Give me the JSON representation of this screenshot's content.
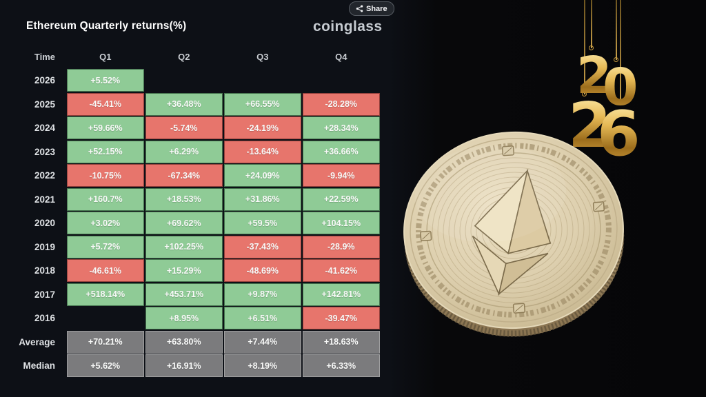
{
  "header": {
    "title": "Ethereum Quarterly returns(%)",
    "brand": "coinglass",
    "share_label": "Share"
  },
  "table": {
    "time_header": "Time",
    "quarter_headers": [
      "Q1",
      "Q2",
      "Q3",
      "Q4"
    ],
    "rows": [
      {
        "label": "2026",
        "cells": [
          {
            "text": "+5.52%",
            "type": "green"
          },
          {
            "type": "empty"
          },
          {
            "type": "empty"
          },
          {
            "type": "empty"
          }
        ]
      },
      {
        "label": "2025",
        "cells": [
          {
            "text": "-45.41%",
            "type": "red"
          },
          {
            "text": "+36.48%",
            "type": "green"
          },
          {
            "text": "+66.55%",
            "type": "green"
          },
          {
            "text": "-28.28%",
            "type": "red"
          }
        ]
      },
      {
        "label": "2024",
        "cells": [
          {
            "text": "+59.66%",
            "type": "green"
          },
          {
            "text": "-5.74%",
            "type": "red"
          },
          {
            "text": "-24.19%",
            "type": "red"
          },
          {
            "text": "+28.34%",
            "type": "green"
          }
        ]
      },
      {
        "label": "2023",
        "cells": [
          {
            "text": "+52.15%",
            "type": "green"
          },
          {
            "text": "+6.29%",
            "type": "green"
          },
          {
            "text": "-13.64%",
            "type": "red"
          },
          {
            "text": "+36.66%",
            "type": "green"
          }
        ]
      },
      {
        "label": "2022",
        "cells": [
          {
            "text": "-10.75%",
            "type": "red"
          },
          {
            "text": "-67.34%",
            "type": "red"
          },
          {
            "text": "+24.09%",
            "type": "green"
          },
          {
            "text": "-9.94%",
            "type": "red"
          }
        ]
      },
      {
        "label": "2021",
        "cells": [
          {
            "text": "+160.7%",
            "type": "green"
          },
          {
            "text": "+18.53%",
            "type": "green"
          },
          {
            "text": "+31.86%",
            "type": "green"
          },
          {
            "text": "+22.59%",
            "type": "green"
          }
        ]
      },
      {
        "label": "2020",
        "cells": [
          {
            "text": "+3.02%",
            "type": "green"
          },
          {
            "text": "+69.62%",
            "type": "green"
          },
          {
            "text": "+59.5%",
            "type": "green"
          },
          {
            "text": "+104.15%",
            "type": "green"
          }
        ]
      },
      {
        "label": "2019",
        "cells": [
          {
            "text": "+5.72%",
            "type": "green"
          },
          {
            "text": "+102.25%",
            "type": "green"
          },
          {
            "text": "-37.43%",
            "type": "red"
          },
          {
            "text": "-28.9%",
            "type": "red"
          }
        ]
      },
      {
        "label": "2018",
        "cells": [
          {
            "text": "-46.61%",
            "type": "red"
          },
          {
            "text": "+15.29%",
            "type": "green"
          },
          {
            "text": "-48.69%",
            "type": "red"
          },
          {
            "text": "-41.62%",
            "type": "red"
          }
        ]
      },
      {
        "label": "2017",
        "cells": [
          {
            "text": "+518.14%",
            "type": "green"
          },
          {
            "text": "+453.71%",
            "type": "green"
          },
          {
            "text": "+9.87%",
            "type": "green"
          },
          {
            "text": "+142.81%",
            "type": "green"
          }
        ]
      },
      {
        "label": "2016",
        "cells": [
          {
            "type": "empty"
          },
          {
            "text": "+8.95%",
            "type": "green"
          },
          {
            "text": "+6.51%",
            "type": "green"
          },
          {
            "text": "-39.47%",
            "type": "red"
          }
        ]
      },
      {
        "label": "Average",
        "cells": [
          {
            "text": "+70.21%",
            "type": "gray"
          },
          {
            "text": "+63.80%",
            "type": "gray"
          },
          {
            "text": "+7.44%",
            "type": "gray"
          },
          {
            "text": "+18.63%",
            "type": "gray"
          }
        ]
      },
      {
        "label": "Median",
        "cells": [
          {
            "text": "+5.62%",
            "type": "gray"
          },
          {
            "text": "+16.91%",
            "type": "gray"
          },
          {
            "text": "+8.19%",
            "type": "gray"
          },
          {
            "text": "+6.33%",
            "type": "gray"
          }
        ]
      }
    ]
  },
  "decor": {
    "digits": [
      "2",
      "0",
      "2",
      "6"
    ],
    "coin_label": "Ethereum gold coin"
  },
  "colors": {
    "positive": "#8FCB96",
    "negative": "#E7756C",
    "summary": "#7B7B7D",
    "background": "#0D1016",
    "gold": "#D4A043"
  },
  "chart_data": {
    "type": "heatmap",
    "title": "Ethereum Quarterly returns(%)",
    "columns": [
      "Q1",
      "Q2",
      "Q3",
      "Q4"
    ],
    "rows": [
      {
        "time": "2026",
        "values": [
          5.52,
          null,
          null,
          null
        ]
      },
      {
        "time": "2025",
        "values": [
          -45.41,
          36.48,
          66.55,
          -28.28
        ]
      },
      {
        "time": "2024",
        "values": [
          59.66,
          -5.74,
          -24.19,
          28.34
        ]
      },
      {
        "time": "2023",
        "values": [
          52.15,
          6.29,
          -13.64,
          36.66
        ]
      },
      {
        "time": "2022",
        "values": [
          -10.75,
          -67.34,
          24.09,
          -9.94
        ]
      },
      {
        "time": "2021",
        "values": [
          160.7,
          18.53,
          31.86,
          22.59
        ]
      },
      {
        "time": "2020",
        "values": [
          3.02,
          69.62,
          59.5,
          104.15
        ]
      },
      {
        "time": "2019",
        "values": [
          5.72,
          102.25,
          -37.43,
          -28.9
        ]
      },
      {
        "time": "2018",
        "values": [
          -46.61,
          15.29,
          -48.69,
          -41.62
        ]
      },
      {
        "time": "2017",
        "values": [
          518.14,
          453.71,
          9.87,
          142.81
        ]
      },
      {
        "time": "2016",
        "values": [
          null,
          8.95,
          6.51,
          -39.47
        ]
      },
      {
        "time": "Average",
        "values": [
          70.21,
          63.8,
          7.44,
          18.63
        ]
      },
      {
        "time": "Median",
        "values": [
          5.62,
          16.91,
          8.19,
          6.33
        ]
      }
    ],
    "legend": "green = positive return, red = negative return, gray = summary rows",
    "unit": "%"
  }
}
